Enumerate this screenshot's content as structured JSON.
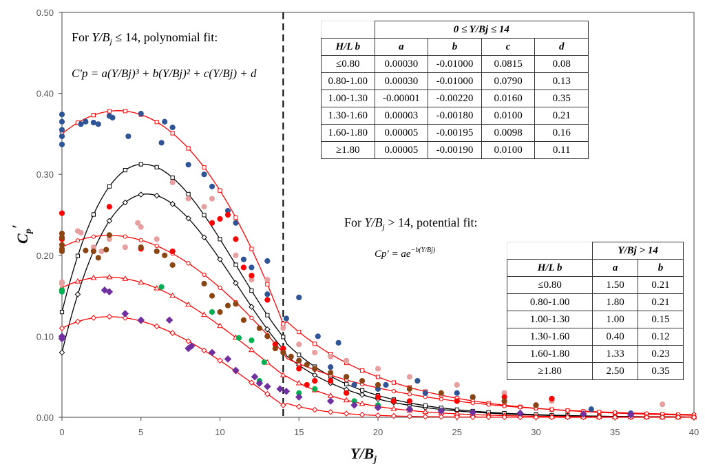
{
  "chart_data": {
    "type": "scatter",
    "xlabel": "Y/B",
    "xlabel_sub": "j",
    "ylabel": "C",
    "ylabel_sub": "p",
    "ylabel_prime": "′",
    "xlim": [
      0,
      40
    ],
    "ylim": [
      0,
      0.5
    ],
    "x_ticks": [
      "0",
      "5",
      "10",
      "15",
      "20",
      "25",
      "30",
      "35",
      "40"
    ],
    "y_ticks": [
      "0.00",
      "0.10",
      "0.20",
      "0.30",
      "0.40",
      "0.50"
    ],
    "x_tick_values": [
      0,
      5,
      10,
      15,
      20,
      25,
      30,
      35,
      40
    ],
    "y_tick_values": [
      0,
      0.1,
      0.2,
      0.3,
      0.4,
      0.5
    ],
    "boundary_x": 14,
    "annotations": {
      "poly_prefix": "For ",
      "poly_cond": "Y/B",
      "poly_cond_sub": "j",
      "poly_le": " ≤ 14, polynomial fit:",
      "poly_formula": "C′p = a(Y/Bj)³ + b(Y/Bj)² + c(Y/Bj) + d",
      "pot_prefix": "For ",
      "pot_cond": "Y/B",
      "pot_cond_sub": "j",
      "pot_gt": " > 14, potential fit:",
      "pot_formula_lhs": "Cp′ = ae",
      "pot_formula_exp": "−b(Y/Bj)"
    },
    "polynomial_table": {
      "header_range": "0 ≤ Y/Bj ≤ 14",
      "col_label": "H/L b",
      "columns": [
        "a",
        "b",
        "c",
        "d"
      ],
      "rows": [
        {
          "label": "≤0.80",
          "a": "0.00030",
          "b": "-0.01000",
          "c": "0.0815",
          "d": "0.08"
        },
        {
          "label": "0.80-1.00",
          "a": "0.00030",
          "b": "-0.01000",
          "c": "0.0790",
          "d": "0.13"
        },
        {
          "label": "1.00-1.30",
          "a": "-0.00001",
          "b": "-0.00220",
          "c": "0.0160",
          "d": "0.35"
        },
        {
          "label": "1.30-1.60",
          "a": "0.00003",
          "b": "-0.00180",
          "c": "0.0100",
          "d": "0.21"
        },
        {
          "label": "1.60-1.80",
          "a": "0.00005",
          "b": "-0.00195",
          "c": "0.0098",
          "d": "0.16"
        },
        {
          "label": "≥1.80",
          "a": "0.00005",
          "b": "-0.00190",
          "c": "0.0100",
          "d": "0.11"
        }
      ]
    },
    "potential_table": {
      "header_range": "Y/Bj > 14",
      "col_label": "H/L b",
      "columns": [
        "a",
        "b"
      ],
      "rows": [
        {
          "label": "≤0.80",
          "a": "1.50",
          "b": "0.21"
        },
        {
          "label": "0.80-1.00",
          "a": "1.80",
          "b": "0.21"
        },
        {
          "label": "1.00-1.30",
          "a": "1.00",
          "b": "0.15"
        },
        {
          "label": "1.30-1.60",
          "a": "0.40",
          "b": "0.12"
        },
        {
          "label": "1.60-1.80",
          "a": "1.33",
          "b": "0.23"
        },
        {
          "label": "≥1.80",
          "a": "2.50",
          "b": "0.35"
        }
      ]
    },
    "fit_curves": [
      {
        "name": "≤0.80",
        "color": "#000000",
        "marker": "diamond",
        "poly": [
          0.0003,
          -0.01,
          0.0815,
          0.08
        ],
        "pot": [
          1.5,
          0.21
        ]
      },
      {
        "name": "0.80-1.00",
        "color": "#000000",
        "marker": "square",
        "poly": [
          0.0003,
          -0.01,
          0.079,
          0.13
        ],
        "pot": [
          1.8,
          0.21
        ]
      },
      {
        "name": "1.00-1.30",
        "color": "#ff0000",
        "marker": "square",
        "poly": [
          -1e-05,
          -0.0022,
          0.016,
          0.35
        ],
        "pot": [
          1.0,
          0.15
        ]
      },
      {
        "name": "1.30-1.60",
        "color": "#ff0000",
        "marker": "circle",
        "poly": [
          3e-05,
          -0.0018,
          0.01,
          0.21
        ],
        "pot": [
          0.4,
          0.12
        ]
      },
      {
        "name": "1.60-1.80",
        "color": "#ff0000",
        "marker": "triangle",
        "poly": [
          5e-05,
          -0.00195,
          0.0098,
          0.16
        ],
        "pot": [
          1.33,
          0.23
        ]
      },
      {
        "name": "≥1.80",
        "color": "#ff0000",
        "marker": "diamond",
        "poly": [
          5e-05,
          -0.0019,
          0.01,
          0.11
        ],
        "pot": [
          2.5,
          0.35
        ]
      }
    ],
    "scatter_series": [
      {
        "name": "blue",
        "color": "#2f5597",
        "marker": "circle",
        "points": [
          [
            0,
            0.374
          ],
          [
            0,
            0.365
          ],
          [
            0,
            0.355
          ],
          [
            0,
            0.347
          ],
          [
            0,
            0.337
          ],
          [
            1.2,
            0.362
          ],
          [
            1.5,
            0.365
          ],
          [
            2,
            0.364
          ],
          [
            2.3,
            0.362
          ],
          [
            3,
            0.372
          ],
          [
            3.2,
            0.37
          ],
          [
            4.2,
            0.347
          ],
          [
            5,
            0.375
          ],
          [
            6.5,
            0.365
          ],
          [
            6.3,
            0.339
          ],
          [
            7,
            0.358
          ],
          [
            8,
            0.312
          ],
          [
            9,
            0.3
          ],
          [
            9.5,
            0.285
          ],
          [
            10.5,
            0.255
          ],
          [
            11,
            0.24
          ],
          [
            11.5,
            0.195
          ],
          [
            12,
            0.185
          ],
          [
            13,
            0.193
          ],
          [
            13,
            0.152
          ],
          [
            14.2,
            0.122
          ],
          [
            15,
            0.148
          ],
          [
            15,
            0.07
          ],
          [
            16,
            0.06
          ],
          [
            16.2,
            0.1
          ],
          [
            17,
            0.062
          ],
          [
            17.5,
            0.092
          ],
          [
            18,
            0.05
          ],
          [
            18.5,
            0.04
          ],
          [
            20,
            0.035
          ],
          [
            20.5,
            0.04
          ],
          [
            22.5,
            0.045
          ],
          [
            23,
            0.03
          ],
          [
            25,
            0.03
          ],
          [
            26,
            0.025
          ],
          [
            30,
            0.015
          ],
          [
            33.5,
            0.01
          ],
          [
            36,
            0.005
          ]
        ]
      },
      {
        "name": "pink",
        "color": "#e6a0a0",
        "marker": "circle",
        "points": [
          [
            0,
            0.167
          ],
          [
            0,
            0.165
          ],
          [
            1,
            0.23
          ],
          [
            1.2,
            0.228
          ],
          [
            2,
            0.21
          ],
          [
            2.5,
            0.205
          ],
          [
            3,
            0.22
          ],
          [
            4,
            0.21
          ],
          [
            4.8,
            0.24
          ],
          [
            5,
            0.235
          ],
          [
            6,
            0.22
          ],
          [
            7,
            0.29
          ],
          [
            8,
            0.27
          ],
          [
            9,
            0.26
          ],
          [
            9.5,
            0.27
          ],
          [
            11,
            0.2
          ],
          [
            12,
            0.17
          ],
          [
            13,
            0.17
          ],
          [
            14,
            0.11
          ],
          [
            15,
            0.09
          ],
          [
            16,
            0.08
          ],
          [
            17,
            0.075
          ],
          [
            18,
            0.07
          ],
          [
            20,
            0.06
          ],
          [
            22,
            0.05
          ],
          [
            25,
            0.04
          ],
          [
            28,
            0.03
          ],
          [
            31,
            0.02
          ],
          [
            38,
            0.016
          ]
        ]
      },
      {
        "name": "red",
        "color": "#ff0000",
        "marker": "circle",
        "points": [
          [
            0,
            0.252
          ],
          [
            0,
            0.22
          ],
          [
            3,
            0.26
          ],
          [
            5,
            0.208
          ],
          [
            7,
            0.205
          ],
          [
            9.5,
            0.24
          ],
          [
            10,
            0.245
          ],
          [
            10.5,
            0.25
          ],
          [
            11,
            0.22
          ],
          [
            11.5,
            0.185
          ],
          [
            12,
            0.175
          ],
          [
            13,
            0.145
          ],
          [
            13.5,
            0.09
          ],
          [
            14,
            0.085
          ],
          [
            15,
            0.06
          ],
          [
            15.5,
            0.04
          ],
          [
            16,
            0.045
          ],
          [
            17,
            0.045
          ],
          [
            18,
            0.03
          ],
          [
            20,
            0.025
          ],
          [
            21,
            0.02
          ],
          [
            22,
            0.02
          ],
          [
            25,
            0.02
          ],
          [
            28,
            0.025
          ],
          [
            31,
            0.023
          ]
        ]
      },
      {
        "name": "brown",
        "color": "#8b4513",
        "marker": "circle",
        "points": [
          [
            0,
            0.227
          ],
          [
            0,
            0.222
          ],
          [
            0,
            0.213
          ],
          [
            0,
            0.208
          ],
          [
            0,
            0.205
          ],
          [
            1.5,
            0.206
          ],
          [
            2,
            0.205
          ],
          [
            2.3,
            0.197
          ],
          [
            2.8,
            0.207
          ],
          [
            3,
            0.225
          ],
          [
            5,
            0.21
          ],
          [
            6,
            0.205
          ],
          [
            6.5,
            0.2
          ],
          [
            7,
            0.188
          ],
          [
            9,
            0.165
          ],
          [
            9.5,
            0.15
          ],
          [
            10,
            0.13
          ],
          [
            10.5,
            0.138
          ],
          [
            11,
            0.14
          ],
          [
            11.5,
            0.12
          ],
          [
            12.5,
            0.11
          ],
          [
            13,
            0.1
          ],
          [
            13.5,
            0.085
          ],
          [
            14,
            0.08
          ],
          [
            14.5,
            0.075
          ],
          [
            15,
            0.07
          ],
          [
            15.5,
            0.065
          ],
          [
            16,
            0.06
          ],
          [
            17,
            0.055
          ],
          [
            18,
            0.05
          ],
          [
            19,
            0.045
          ],
          [
            20,
            0.04
          ],
          [
            22,
            0.035
          ],
          [
            24,
            0.03
          ],
          [
            26,
            0.025
          ],
          [
            28,
            0.02
          ],
          [
            30,
            0.015
          ]
        ]
      },
      {
        "name": "green",
        "color": "#00b050",
        "marker": "circle",
        "points": [
          [
            0,
            0.157
          ],
          [
            0,
            0.155
          ],
          [
            6.3,
            0.161
          ],
          [
            9.5,
            0.13
          ],
          [
            11.2,
            0.098
          ],
          [
            12,
            0.095
          ],
          [
            12.8,
            0.068
          ],
          [
            12.5,
            0.045
          ],
          [
            15,
            0.03
          ],
          [
            16,
            0.035
          ],
          [
            18.5,
            0.02
          ],
          [
            20,
            0.015
          ],
          [
            22,
            0.01
          ],
          [
            24,
            0.008
          ]
        ]
      },
      {
        "name": "purple",
        "color": "#7030a0",
        "marker": "diamond",
        "points": [
          [
            0,
            0.1
          ],
          [
            0,
            0.097
          ],
          [
            2.7,
            0.157
          ],
          [
            3,
            0.155
          ],
          [
            4,
            0.128
          ],
          [
            5,
            0.12
          ],
          [
            6.8,
            0.12
          ],
          [
            8.2,
            0.088
          ],
          [
            8,
            0.085
          ],
          [
            9.5,
            0.08
          ],
          [
            10.5,
            0.072
          ],
          [
            11,
            0.058
          ],
          [
            12.2,
            0.05
          ],
          [
            12.5,
            0.042
          ],
          [
            13,
            0.038
          ],
          [
            13.8,
            0.035
          ],
          [
            14.2,
            0.032
          ],
          [
            15,
            0.025
          ],
          [
            17,
            0.02
          ],
          [
            18.5,
            0.015
          ],
          [
            20,
            0.012
          ],
          [
            22,
            0.01
          ],
          [
            24,
            0.008
          ],
          [
            26,
            0.006
          ],
          [
            29,
            0.005
          ],
          [
            33,
            0.004
          ],
          [
            36,
            0.003
          ]
        ]
      }
    ]
  }
}
